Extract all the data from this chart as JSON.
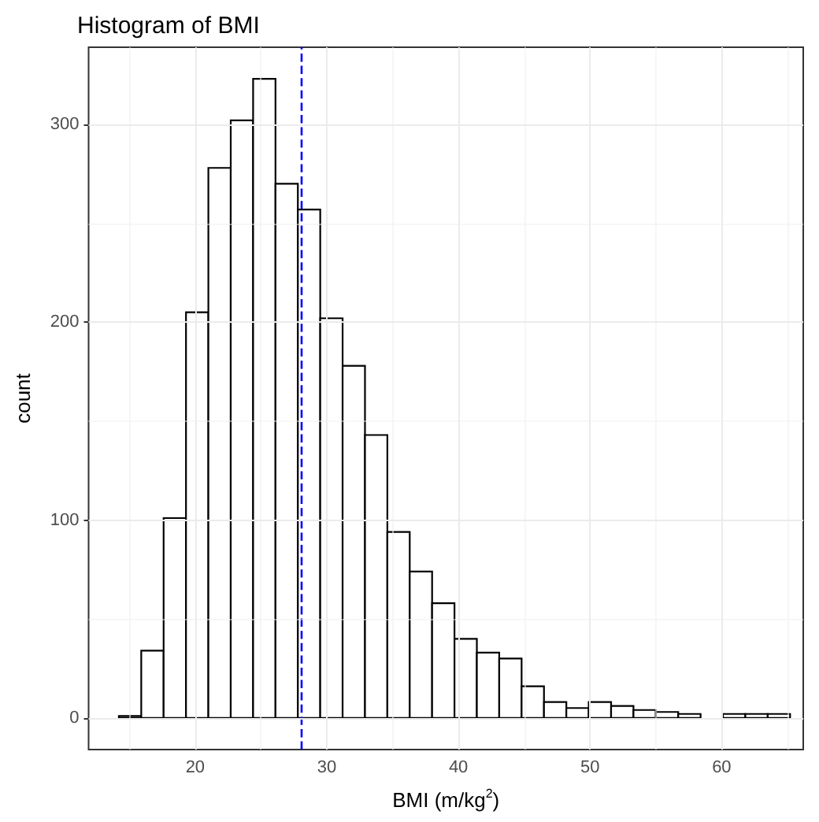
{
  "chart_data": {
    "type": "histogram",
    "title": "Histogram of BMI",
    "xlabel": "BMI (m/kg$^{2}$)",
    "ylabel": "count",
    "bins": [
      14.2,
      15.9,
      17.6,
      19.3,
      21.0,
      22.7,
      24.4,
      26.1,
      27.8,
      29.5,
      31.2,
      32.9,
      34.6,
      36.3,
      38.0,
      39.7,
      41.4,
      43.1,
      44.8,
      46.5,
      48.2,
      49.9,
      51.6,
      53.3,
      55.0,
      56.7,
      58.4,
      60.1,
      61.8,
      63.5,
      65.2
    ],
    "values": [
      1,
      34,
      101,
      205,
      278,
      302,
      323,
      270,
      257,
      202,
      178,
      143,
      94,
      74,
      58,
      40,
      33,
      30,
      16,
      8,
      5,
      8,
      6,
      4,
      3,
      2,
      0,
      2,
      2,
      2
    ],
    "color": "#ffffff",
    "xlim": [
      11.9,
      66.2
    ],
    "xticks": [
      20,
      30,
      40,
      50,
      60
    ],
    "ylim": [
      -16,
      339
    ],
    "yticks": [
      0,
      100,
      200,
      300
    ],
    "grid": true,
    "ref_lines": [
      {
        "axis": "x",
        "value": 28,
        "color": "#0000ff",
        "line_style": "dashed"
      }
    ]
  }
}
